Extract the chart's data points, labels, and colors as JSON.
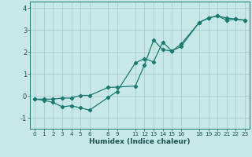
{
  "xlabel": "Humidex (Indice chaleur)",
  "background_color": "#c8e8e8",
  "grid_color": "#a8cccc",
  "line_color": "#1a7a6e",
  "x_ticks": [
    0,
    1,
    2,
    3,
    4,
    5,
    6,
    8,
    9,
    11,
    12,
    13,
    14,
    15,
    16,
    18,
    19,
    20,
    21,
    22,
    23
  ],
  "xlim": [
    -0.5,
    23.5
  ],
  "ylim": [
    -1.5,
    4.3
  ],
  "yticks": [
    -1,
    0,
    1,
    2,
    3,
    4
  ],
  "line1_x": [
    0,
    1,
    2,
    3,
    4,
    5,
    6,
    8,
    9,
    11,
    12,
    13,
    14,
    15,
    16,
    18,
    19,
    20,
    21,
    22,
    23
  ],
  "line1_y": [
    -0.15,
    -0.2,
    -0.3,
    -0.5,
    -0.45,
    -0.55,
    -0.65,
    -0.08,
    0.2,
    1.5,
    1.7,
    1.55,
    2.45,
    2.05,
    2.35,
    3.35,
    3.55,
    3.65,
    3.45,
    3.5,
    3.45
  ],
  "line2_x": [
    0,
    1,
    2,
    3,
    4,
    5,
    6,
    8,
    9,
    11,
    12,
    13,
    14,
    15,
    16,
    18,
    19,
    20,
    21,
    22,
    23
  ],
  "line2_y": [
    -0.15,
    -0.15,
    -0.15,
    -0.1,
    -0.1,
    0.02,
    0.02,
    0.38,
    0.4,
    0.45,
    1.4,
    2.55,
    2.1,
    2.05,
    2.25,
    3.35,
    3.55,
    3.65,
    3.55,
    3.5,
    3.45
  ]
}
